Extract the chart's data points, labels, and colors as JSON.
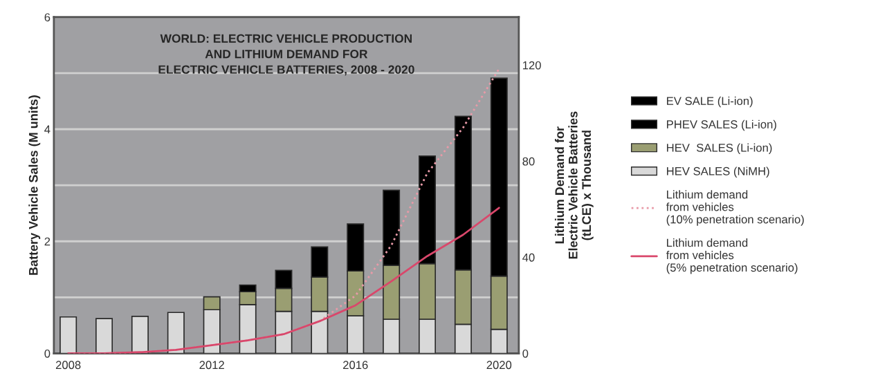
{
  "chart_data": {
    "type": "bar",
    "stacked": true,
    "title": "WORLD: ELECTRIC VEHICLE PRODUCTION\nAND LITHIUM DEMAND FOR\nELECTRIC VEHICLE BATTERIES, 2008 - 2020",
    "ylabel": "Battery Vehicle Sales (M units)",
    "y2label": "Lithium Demand for\nElectric Vehicle Batteries\n(tLCE) x Thousand",
    "x": [
      2008,
      2009,
      2010,
      2011,
      2012,
      2013,
      2014,
      2015,
      2016,
      2017,
      2018,
      2019,
      2020
    ],
    "series": [
      {
        "name": "HEV SALES (NiMH)",
        "color": "#d9d9d9",
        "values": [
          0.65,
          0.62,
          0.66,
          0.73,
          0.78,
          0.87,
          0.75,
          0.75,
          0.67,
          0.61,
          0.61,
          0.52,
          0.43
        ]
      },
      {
        "name": "HEV  SALES (Li-ion)",
        "color": "#9a9e72",
        "values": [
          null,
          null,
          null,
          null,
          0.23,
          0.23,
          0.41,
          0.61,
          0.8,
          0.96,
          0.99,
          0.97,
          0.95
        ]
      },
      {
        "name": "PHEV SALES (Li-ion)",
        "color": "#000000",
        "values": [
          null,
          null,
          null,
          null,
          null,
          0.12,
          0.32,
          0.54,
          0.84,
          1.34,
          1.92,
          2.74,
          3.53
        ]
      },
      {
        "name": "EV SALE (Li-ion)",
        "color": "#000000",
        "values": [
          null,
          null,
          null,
          null,
          null,
          null,
          null,
          null,
          null,
          null,
          null,
          null,
          null
        ]
      },
      {
        "name": "Lithium demand\nfrom vehicles\n(10% penetration scenario)",
        "type": "line",
        "axis": "y2",
        "color": "#e89aa8",
        "line_style": "dotted",
        "values": [
          0,
          0,
          0.5,
          1.5,
          3.4,
          5.4,
          8,
          13.4,
          24,
          45,
          75,
          94,
          118.5
        ]
      },
      {
        "name": "Lithium demand\nfrom vehicles\n(5% penetration scenario)",
        "type": "line",
        "axis": "y2",
        "color": "#d9476b",
        "line_style": "solid",
        "values": [
          0,
          0,
          0.5,
          1.5,
          3.4,
          5.4,
          8,
          13.4,
          20,
          30,
          40.5,
          49.4,
          60.6
        ]
      }
    ],
    "xlim": [
      2007.6,
      2020.55
    ],
    "xticks": [
      2008,
      2012,
      2016,
      2020
    ],
    "ylim": [
      0,
      6
    ],
    "yticks": [
      0,
      {
        "value": 1,
        "label": null
      },
      2,
      {
        "value": 3,
        "label": null
      },
      4,
      {
        "value": 5,
        "label": null
      },
      6
    ],
    "y2lim": [
      0,
      140
    ],
    "y2ticks": [
      0,
      40,
      80,
      120
    ],
    "grid": "y",
    "legend": "right"
  }
}
